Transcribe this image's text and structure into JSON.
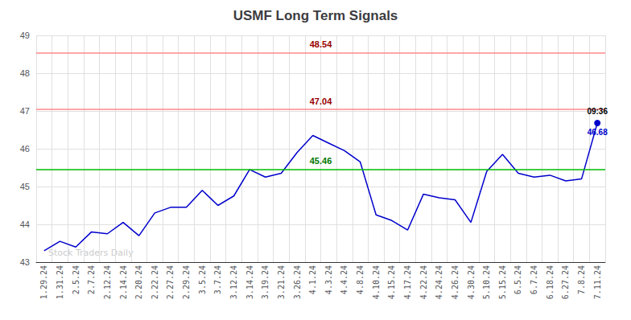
{
  "chart_data": {
    "type": "line",
    "title": "USMF Long Term Signals",
    "categories": [
      "1.29.24",
      "1.31.24",
      "2.5.24",
      "2.7.24",
      "2.12.24",
      "2.14.24",
      "2.20.24",
      "2.22.24",
      "2.27.24",
      "2.29.24",
      "3.5.24",
      "3.7.24",
      "3.12.24",
      "3.14.24",
      "3.19.24",
      "3.21.24",
      "3.26.24",
      "4.1.24",
      "4.3.24",
      "4.4.24",
      "4.8.24",
      "4.10.24",
      "4.15.24",
      "4.17.24",
      "4.22.24",
      "4.24.24",
      "4.26.24",
      "4.30.24",
      "5.10.24",
      "5.15.24",
      "6.5.24",
      "6.7.24",
      "6.18.24",
      "6.27.24",
      "7.8.24",
      "7.11.24"
    ],
    "values": [
      43.3,
      43.55,
      43.4,
      43.8,
      43.75,
      44.05,
      43.7,
      44.3,
      44.45,
      44.45,
      44.9,
      44.5,
      44.75,
      45.45,
      45.25,
      45.35,
      45.9,
      46.35,
      46.15,
      45.95,
      45.65,
      44.25,
      44.1,
      43.85,
      44.8,
      44.7,
      44.65,
      44.05,
      45.4,
      45.85,
      45.35,
      45.25,
      45.3,
      45.15,
      45.2,
      46.68
    ],
    "color": "#0000CC",
    "ylim": [
      43,
      49
    ],
    "yticks": [
      43,
      44,
      45,
      46,
      47,
      48,
      49
    ],
    "grid": true,
    "hlines": [
      {
        "value": 48.54,
        "label": "48.54",
        "color": "#FF8888",
        "label_color": "#990000"
      },
      {
        "value": 47.04,
        "label": "47.04",
        "color": "#FF8888",
        "label_color": "#990000"
      },
      {
        "value": 45.46,
        "label": "45.46",
        "color": "#00BB00",
        "label_color": "#007700"
      }
    ],
    "annotations": [
      {
        "text": "09:36",
        "x": "7.11.24",
        "y": 46.68,
        "color": "#000000",
        "marker": "circle"
      },
      {
        "text": "46.68",
        "x": "7.11.24",
        "y": 46.68,
        "color": "#0000CC"
      }
    ],
    "watermark": {
      "text": "Stock Traders Daily",
      "color": "#C0C0C0"
    }
  }
}
